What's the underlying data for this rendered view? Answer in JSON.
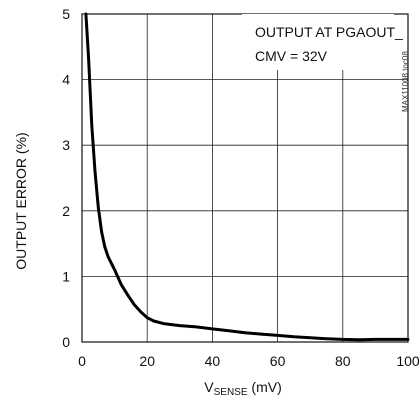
{
  "chart_data": {
    "type": "line",
    "title": "",
    "xlabel": {
      "prefix": "V",
      "subscript": "SENSE",
      "suffix": " (mV)"
    },
    "ylabel": "OUTPUT ERROR (%)",
    "xlim": [
      0,
      100
    ],
    "ylim": [
      0,
      5
    ],
    "xticks": [
      0,
      20,
      40,
      60,
      80,
      100
    ],
    "yticks": [
      0,
      1,
      2,
      3,
      4,
      5
    ],
    "grid": true,
    "annotation": [
      "OUTPUT AT PGAOUT_",
      "CMV = 32V"
    ],
    "watermark": "MAX11008 toc08",
    "series": [
      {
        "x": [
          1.2,
          2,
          3,
          4,
          5,
          6,
          7,
          8,
          10,
          12,
          14,
          16,
          18,
          20,
          22,
          25,
          30,
          35,
          40,
          45,
          50,
          55,
          60,
          65,
          70,
          75,
          80,
          85,
          90,
          95,
          100
        ],
        "y": [
          5,
          4.35,
          3.3,
          2.6,
          2.05,
          1.68,
          1.45,
          1.3,
          1.1,
          0.88,
          0.72,
          0.57,
          0.46,
          0.37,
          0.32,
          0.28,
          0.25,
          0.23,
          0.2,
          0.17,
          0.14,
          0.12,
          0.1,
          0.08,
          0.065,
          0.05,
          0.04,
          0.035,
          0.04,
          0.04,
          0.04
        ]
      }
    ]
  }
}
